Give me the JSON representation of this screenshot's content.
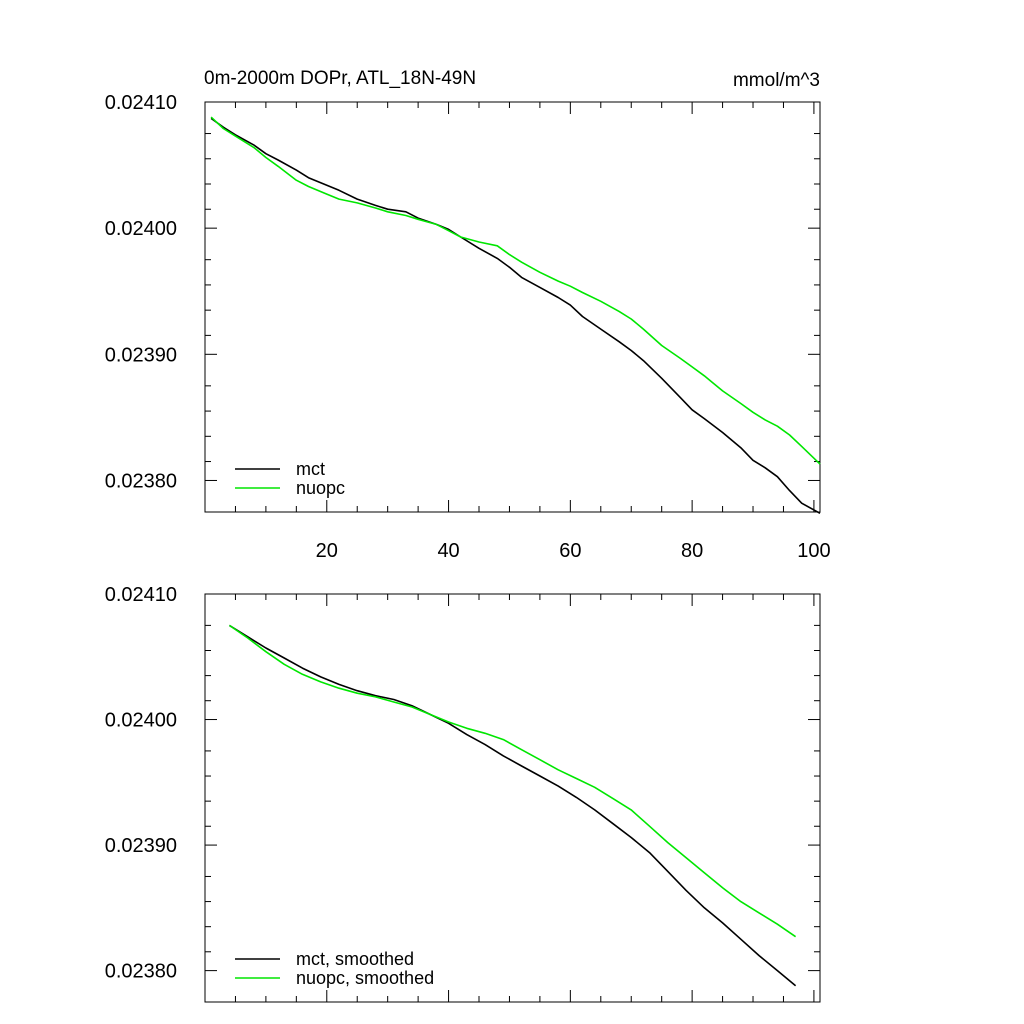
{
  "chart_data": [
    {
      "type": "line",
      "title": "0m-2000m DOPr, ATL_18N-49N",
      "units": "mmol/m^3",
      "xlim": [
        0,
        101
      ],
      "ylim": [
        0.023775,
        0.0241
      ],
      "xticks": [
        20,
        40,
        60,
        80,
        100
      ],
      "xtick_labels": [
        "20",
        "40",
        "60",
        "80",
        "100"
      ],
      "yticks": [
        0.0238,
        0.0239,
        0.024,
        0.0241
      ],
      "ytick_labels": [
        "0.02380",
        "0.02390",
        "0.02400",
        "0.02410"
      ],
      "legend_position": "bottom-left",
      "series": [
        {
          "name": "mct",
          "color": "#000000",
          "x": [
            1,
            3,
            5,
            8,
            10,
            12,
            15,
            17,
            20,
            22,
            25,
            28,
            30,
            33,
            35,
            38,
            40,
            42,
            45,
            48,
            50,
            52,
            55,
            58,
            60,
            62,
            65,
            68,
            70,
            72,
            75,
            78,
            80,
            82,
            85,
            88,
            90,
            92,
            94,
            96,
            98,
            101
          ],
          "y": [
            0.024087,
            0.02408,
            0.024074,
            0.024066,
            0.024059,
            0.024054,
            0.024046,
            0.02404,
            0.024034,
            0.02403,
            0.024023,
            0.024018,
            0.024015,
            0.024013,
            0.024008,
            0.024003,
            0.023999,
            0.023993,
            0.023984,
            0.023976,
            0.023969,
            0.023961,
            0.023953,
            0.023945,
            0.023939,
            0.02393,
            0.02392,
            0.02391,
            0.023903,
            0.023895,
            0.023881,
            0.023866,
            0.023856,
            0.023849,
            0.023838,
            0.023826,
            0.023816,
            0.02381,
            0.023803,
            0.023792,
            0.023782,
            0.023774
          ]
        },
        {
          "name": "nuopc",
          "color": "#00e600",
          "x": [
            1,
            3,
            5,
            8,
            10,
            12,
            15,
            17,
            20,
            22,
            25,
            28,
            30,
            33,
            35,
            38,
            40,
            42,
            45,
            48,
            50,
            52,
            55,
            58,
            60,
            62,
            65,
            68,
            70,
            72,
            75,
            78,
            80,
            82,
            85,
            88,
            90,
            92,
            94,
            96,
            98,
            101
          ],
          "y": [
            0.024088,
            0.024079,
            0.024073,
            0.024064,
            0.024056,
            0.024049,
            0.024038,
            0.024033,
            0.024027,
            0.024023,
            0.02402,
            0.024016,
            0.024013,
            0.02401,
            0.024007,
            0.024003,
            0.023998,
            0.023993,
            0.023989,
            0.023986,
            0.023979,
            0.023973,
            0.023965,
            0.023958,
            0.023954,
            0.023949,
            0.023942,
            0.023934,
            0.023928,
            0.02392,
            0.023907,
            0.023897,
            0.02389,
            0.023883,
            0.023871,
            0.023861,
            0.023854,
            0.023848,
            0.023843,
            0.023836,
            0.023827,
            0.023813
          ]
        }
      ]
    },
    {
      "type": "line",
      "title": "",
      "units": "",
      "xlim": [
        0,
        101
      ],
      "ylim": [
        0.023775,
        0.0241
      ],
      "xticks": [
        20,
        40,
        60,
        80,
        100
      ],
      "xtick_labels": [],
      "yticks": [
        0.0238,
        0.0239,
        0.024,
        0.0241
      ],
      "ytick_labels": [
        "0.02380",
        "0.02390",
        "0.02400",
        "0.02410"
      ],
      "legend_position": "bottom-left",
      "series": [
        {
          "name": "mct, smoothed",
          "color": "#000000",
          "x": [
            4,
            7,
            10,
            13,
            16,
            19,
            22,
            25,
            28,
            31,
            34,
            37,
            40,
            43,
            46,
            49,
            52,
            55,
            58,
            61,
            64,
            67,
            70,
            73,
            76,
            79,
            82,
            85,
            88,
            91,
            94,
            97
          ],
          "y": [
            0.024075,
            0.024066,
            0.024057,
            0.024049,
            0.024041,
            0.024034,
            0.024028,
            0.024023,
            0.024019,
            0.024016,
            0.024011,
            0.024004,
            0.023997,
            0.023988,
            0.02398,
            0.023971,
            0.023963,
            0.023955,
            0.023947,
            0.023938,
            0.023928,
            0.023917,
            0.023906,
            0.023894,
            0.023879,
            0.023864,
            0.02385,
            0.023838,
            0.023825,
            0.023812,
            0.0238,
            0.023788
          ]
        },
        {
          "name": "nuopc, smoothed",
          "color": "#00e600",
          "x": [
            4,
            7,
            10,
            13,
            16,
            19,
            22,
            25,
            28,
            31,
            34,
            37,
            40,
            43,
            46,
            49,
            52,
            55,
            58,
            61,
            64,
            67,
            70,
            73,
            76,
            79,
            82,
            85,
            88,
            91,
            94,
            97
          ],
          "y": [
            0.024075,
            0.024065,
            0.024054,
            0.024044,
            0.024036,
            0.02403,
            0.024025,
            0.024021,
            0.024018,
            0.024014,
            0.02401,
            0.024004,
            0.023998,
            0.023993,
            0.023989,
            0.023984,
            0.023976,
            0.023968,
            0.02396,
            0.023953,
            0.023946,
            0.023937,
            0.023928,
            0.023915,
            0.023902,
            0.02389,
            0.023878,
            0.023866,
            0.023855,
            0.023846,
            0.023837,
            0.023827
          ]
        }
      ]
    }
  ]
}
